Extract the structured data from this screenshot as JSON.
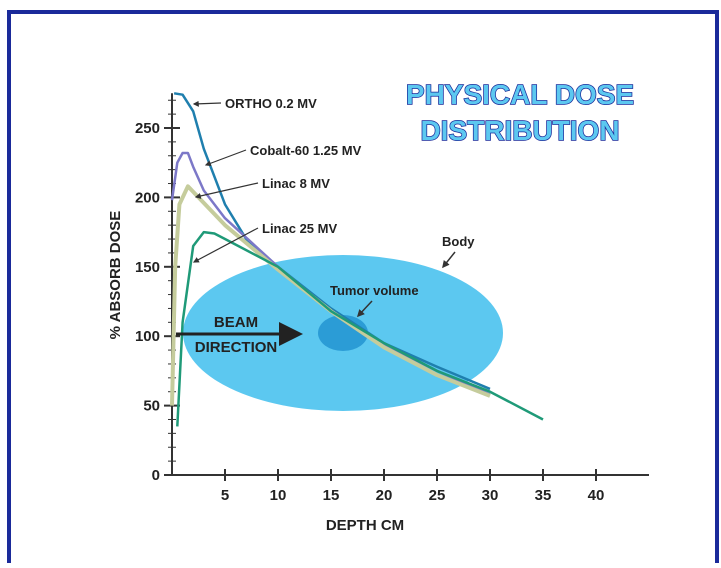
{
  "chart_data": {
    "type": "line",
    "title": [
      "PHYSICAL DOSE",
      "DISTRIBUTION"
    ],
    "x_label": "DEPTH CM",
    "y_label": "% ABSORB DOSE",
    "xlim": [
      0,
      45
    ],
    "ylim": [
      0,
      275
    ],
    "xticks": [
      5,
      10,
      15,
      20,
      25,
      30,
      35,
      40
    ],
    "yticks": [
      0,
      50,
      100,
      150,
      200,
      250
    ],
    "series": [
      {
        "name": "ORTHO  0.2 MV",
        "color": "#1f7fae",
        "x": [
          0.2,
          1,
          2,
          3,
          4,
          5,
          7,
          10,
          15,
          20,
          25,
          30
        ],
        "values": [
          275,
          274,
          262,
          235,
          215,
          195,
          170,
          150,
          120,
          95,
          78,
          62
        ]
      },
      {
        "name": "Cobalt-60  1.25 MV",
        "color": "#7c78c8",
        "x": [
          0,
          0.5,
          1,
          1.5,
          2,
          3,
          5,
          10,
          15,
          20,
          25,
          30
        ],
        "values": [
          198,
          225,
          232,
          232,
          222,
          205,
          185,
          150,
          118,
          94,
          75,
          58
        ]
      },
      {
        "name": "Linac  8 MV",
        "color": "#c5cc9c",
        "x": [
          0,
          0.3,
          0.7,
          1.5,
          2.5,
          5,
          10,
          15,
          20,
          25,
          30
        ],
        "values": [
          50,
          150,
          195,
          208,
          200,
          180,
          148,
          118,
          92,
          72,
          57
        ]
      },
      {
        "name": "Linac  25 MV",
        "color": "#1f9a78",
        "x": [
          0.5,
          1,
          2,
          3,
          4,
          5,
          10,
          15,
          20,
          25,
          30,
          35
        ],
        "values": [
          35,
          110,
          165,
          175,
          174,
          170,
          150,
          118,
          95,
          75,
          60,
          40
        ]
      }
    ],
    "annotations": {
      "body": "Body",
      "tumor": "Tumor volume",
      "beam": [
        "BEAM",
        "DIRECTION"
      ]
    }
  }
}
